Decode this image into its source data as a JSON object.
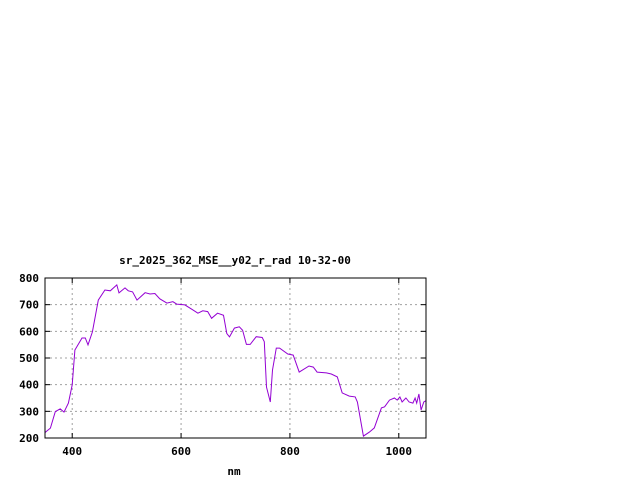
{
  "chart_data": {
    "type": "line",
    "title": "sr_2025_362_MSE__y02_r_rad 10-32-00",
    "xlabel": "nm",
    "ylabel": "",
    "xlim": [
      350,
      1050
    ],
    "ylim": [
      200,
      800
    ],
    "xticks": [
      400,
      600,
      800,
      1000
    ],
    "yticks": [
      200,
      300,
      400,
      500,
      600,
      700,
      800
    ],
    "grid": true,
    "series": [
      {
        "color": "#9400d3",
        "x": [
          350,
          352,
          360,
          369,
          378,
          385,
          393,
          400,
          405,
          418,
          424,
          429,
          437,
          448,
          460,
          470,
          482,
          486,
          497,
          503,
          511,
          519,
          534,
          543,
          552,
          561,
          574,
          585,
          592,
          607,
          621,
          631,
          640,
          649,
          656,
          667,
          678,
          684,
          689,
          698,
          707,
          713,
          720,
          727,
          738,
          749,
          753,
          757,
          764,
          768,
          775,
          781,
          796,
          806,
          817,
          835,
          843,
          850,
          867,
          876,
          887,
          896,
          909,
          920,
          924,
          935,
          946,
          955,
          968,
          974,
          983,
          992,
          997,
          1002,
          1006,
          1013,
          1019,
          1026,
          1030,
          1033,
          1037,
          1041,
          1046,
          1050
        ],
        "y": [
          220,
          224,
          237,
          299,
          309,
          297,
          331,
          399,
          530,
          575,
          575,
          549,
          598,
          717,
          755,
          752,
          774,
          744,
          763,
          752,
          748,
          717,
          745,
          740,
          742,
          722,
          706,
          711,
          702,
          699,
          681,
          668,
          677,
          674,
          649,
          668,
          660,
          592,
          579,
          612,
          617,
          604,
          551,
          551,
          580,
          577,
          561,
          391,
          335,
          455,
          537,
          537,
          515,
          511,
          447,
          470,
          466,
          447,
          444,
          440,
          429,
          369,
          357,
          354,
          335,
          207,
          222,
          238,
          313,
          317,
          342,
          350,
          342,
          354,
          335,
          350,
          335,
          331,
          350,
          331,
          365,
          305,
          335,
          340
        ]
      }
    ]
  }
}
